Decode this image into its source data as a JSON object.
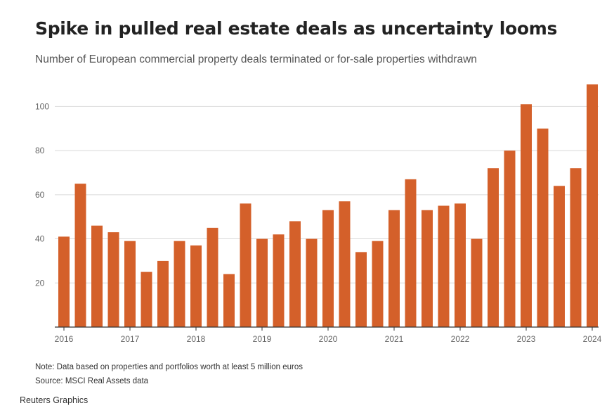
{
  "title": "Spike in pulled real estate deals as uncertainty looms",
  "subtitle": "Number of European commercial property deals terminated or for-sale properties withdrawn",
  "note": "Note: Data based on properties and portfolios worth at least 5 million euros",
  "source": "Source: MSCI Real Assets data",
  "credit": "Reuters Graphics",
  "colors": {
    "bar": "#d4602a",
    "grid": "#d9d9d9",
    "axis": "#333333"
  },
  "chart_data": {
    "type": "bar",
    "title": "Spike in pulled real estate deals as uncertainty looms",
    "subtitle": "Number of European commercial property deals terminated or for-sale properties withdrawn",
    "xlabel": "",
    "ylabel": "",
    "ylim": [
      0,
      110
    ],
    "yticks": [
      20,
      40,
      60,
      80,
      100
    ],
    "grid": true,
    "x_tick_labels": [
      "2016",
      "2017",
      "2018",
      "2019",
      "2020",
      "2021",
      "2022",
      "2023",
      "2024"
    ],
    "values": [
      41,
      65,
      46,
      43,
      39,
      25,
      30,
      39,
      37,
      45,
      24,
      56,
      40,
      42,
      48,
      40,
      53,
      57,
      34,
      39,
      53,
      67,
      53,
      55,
      56,
      40,
      72,
      80,
      101,
      90,
      64,
      72,
      110
    ]
  }
}
